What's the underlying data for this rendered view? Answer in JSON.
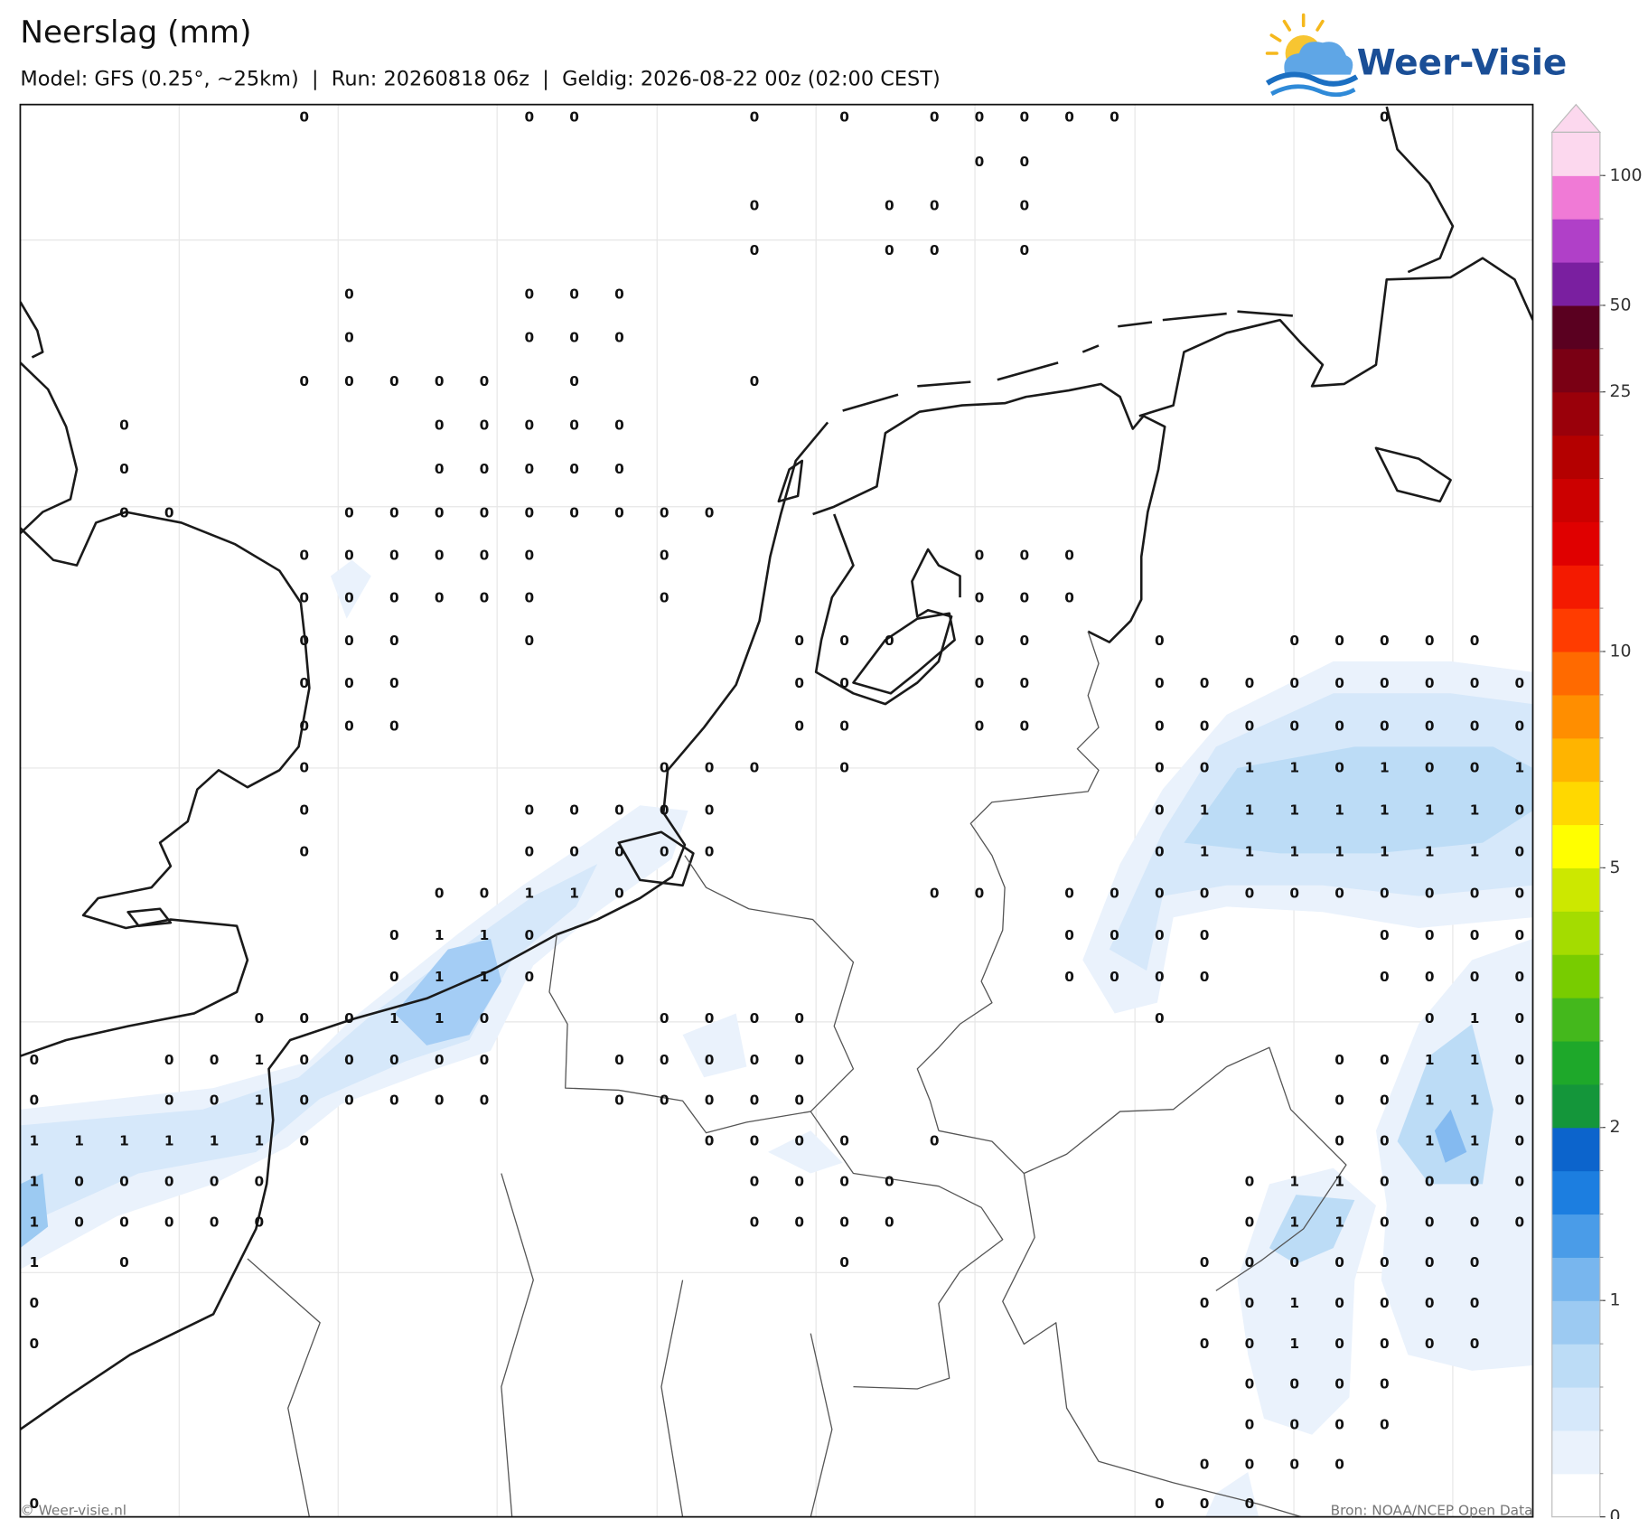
{
  "header": {
    "title": "Neerslag (mm)",
    "subtitle": "Model: GFS (0.25°, ~25km)  |  Run: 20260818 06z  |  Geldig: 2026-08-22 00z (02:00 CEST)",
    "logo": "Weer-Visie"
  },
  "map": {
    "grid": [
      [
        null,
        null,
        null,
        null,
        null,
        null,
        0,
        null,
        null,
        null,
        null,
        0,
        0,
        null,
        null,
        null,
        0,
        null,
        0,
        null,
        0,
        0,
        0,
        0,
        0,
        null,
        null,
        null,
        null,
        null,
        0,
        null,
        null,
        null
      ],
      [
        null,
        null,
        null,
        null,
        null,
        null,
        null,
        null,
        null,
        null,
        null,
        null,
        null,
        null,
        null,
        null,
        null,
        null,
        null,
        null,
        null,
        0,
        0,
        null,
        null,
        null,
        null,
        null,
        null,
        null,
        null,
        null,
        null,
        null
      ],
      [
        null,
        null,
        null,
        null,
        null,
        null,
        null,
        null,
        null,
        null,
        null,
        null,
        null,
        null,
        null,
        null,
        0,
        null,
        null,
        0,
        0,
        null,
        0,
        null,
        null,
        null,
        null,
        null,
        null,
        null,
        null,
        null,
        null,
        null
      ],
      [
        null,
        null,
        null,
        null,
        null,
        null,
        null,
        null,
        null,
        null,
        null,
        null,
        null,
        null,
        null,
        null,
        0,
        null,
        null,
        0,
        0,
        null,
        0,
        null,
        null,
        null,
        null,
        null,
        null,
        null,
        null,
        null,
        null,
        null
      ],
      [
        null,
        null,
        null,
        null,
        null,
        null,
        null,
        0,
        null,
        null,
        null,
        0,
        0,
        0,
        null,
        null,
        null,
        null,
        null,
        null,
        null,
        null,
        null,
        null,
        null,
        null,
        null,
        null,
        null,
        null,
        null,
        null,
        null,
        null
      ],
      [
        null,
        null,
        null,
        null,
        null,
        null,
        null,
        0,
        null,
        null,
        null,
        0,
        0,
        0,
        null,
        null,
        null,
        null,
        null,
        null,
        null,
        null,
        null,
        null,
        null,
        null,
        null,
        null,
        null,
        null,
        null,
        null,
        null,
        null
      ],
      [
        null,
        null,
        null,
        null,
        null,
        null,
        0,
        0,
        0,
        0,
        0,
        null,
        0,
        null,
        null,
        null,
        0,
        null,
        null,
        null,
        null,
        null,
        null,
        null,
        null,
        null,
        null,
        null,
        null,
        null,
        null,
        null,
        null,
        null
      ],
      [
        null,
        null,
        0,
        null,
        null,
        null,
        null,
        null,
        null,
        0,
        0,
        0,
        0,
        0,
        null,
        null,
        null,
        null,
        null,
        null,
        null,
        null,
        null,
        null,
        null,
        null,
        null,
        null,
        null,
        null,
        null,
        null,
        null,
        null
      ],
      [
        null,
        null,
        0,
        null,
        null,
        null,
        null,
        null,
        null,
        0,
        0,
        0,
        0,
        0,
        null,
        null,
        null,
        null,
        null,
        null,
        null,
        null,
        null,
        null,
        null,
        null,
        null,
        null,
        null,
        null,
        null,
        null,
        null,
        null
      ],
      [
        null,
        null,
        0,
        0,
        null,
        null,
        null,
        0,
        0,
        0,
        0,
        0,
        0,
        0,
        0,
        0,
        null,
        null,
        null,
        null,
        null,
        null,
        null,
        null,
        null,
        null,
        null,
        null,
        null,
        null,
        null,
        null,
        null,
        null
      ],
      [
        null,
        null,
        null,
        null,
        null,
        null,
        0,
        0,
        0,
        0,
        0,
        0,
        null,
        null,
        0,
        null,
        null,
        null,
        null,
        null,
        null,
        0,
        0,
        0,
        null,
        null,
        null,
        null,
        null,
        null,
        null,
        null,
        null,
        null
      ],
      [
        null,
        null,
        null,
        null,
        null,
        null,
        0,
        0,
        0,
        0,
        0,
        0,
        null,
        null,
        0,
        null,
        null,
        null,
        null,
        null,
        null,
        0,
        0,
        0,
        null,
        null,
        null,
        null,
        null,
        null,
        null,
        null,
        null,
        null
      ],
      [
        null,
        null,
        null,
        null,
        null,
        null,
        0,
        0,
        0,
        null,
        null,
        0,
        null,
        null,
        null,
        null,
        null,
        0,
        0,
        0,
        null,
        0,
        0,
        null,
        null,
        0,
        null,
        null,
        0,
        0,
        0,
        0,
        0,
        null
      ],
      [
        null,
        null,
        null,
        null,
        null,
        null,
        0,
        0,
        0,
        null,
        null,
        null,
        null,
        null,
        null,
        null,
        null,
        0,
        0,
        null,
        null,
        0,
        0,
        null,
        null,
        0,
        0,
        0,
        0,
        0,
        0,
        0,
        0,
        0
      ],
      [
        null,
        null,
        null,
        null,
        null,
        null,
        0,
        0,
        0,
        null,
        null,
        null,
        null,
        null,
        null,
        null,
        null,
        0,
        0,
        null,
        null,
        0,
        0,
        null,
        null,
        0,
        0,
        0,
        0,
        0,
        0,
        0,
        0,
        0
      ],
      [
        null,
        null,
        null,
        null,
        null,
        null,
        0,
        null,
        null,
        null,
        null,
        null,
        null,
        null,
        0,
        0,
        0,
        null,
        0,
        null,
        null,
        null,
        null,
        null,
        null,
        0,
        0,
        1,
        1,
        0,
        1,
        0,
        0,
        1
      ],
      [
        null,
        null,
        null,
        null,
        null,
        null,
        0,
        null,
        null,
        null,
        null,
        0,
        0,
        0,
        0,
        0,
        null,
        null,
        null,
        null,
        null,
        null,
        null,
        null,
        null,
        0,
        1,
        1,
        1,
        1,
        1,
        1,
        1,
        0
      ],
      [
        null,
        null,
        null,
        null,
        null,
        null,
        0,
        null,
        null,
        null,
        null,
        0,
        0,
        0,
        0,
        0,
        null,
        null,
        null,
        null,
        null,
        null,
        null,
        null,
        null,
        0,
        1,
        1,
        1,
        1,
        1,
        1,
        1,
        0
      ],
      [
        null,
        null,
        null,
        null,
        null,
        null,
        null,
        null,
        null,
        0,
        0,
        1,
        1,
        0,
        null,
        null,
        null,
        null,
        null,
        null,
        0,
        0,
        null,
        0,
        0,
        0,
        0,
        0,
        0,
        0,
        0,
        0,
        0,
        0
      ],
      [
        null,
        null,
        null,
        null,
        null,
        null,
        null,
        null,
        0,
        1,
        1,
        0,
        null,
        null,
        null,
        null,
        null,
        null,
        null,
        null,
        null,
        null,
        null,
        0,
        0,
        0,
        0,
        null,
        null,
        null,
        0,
        0,
        0,
        0
      ],
      [
        null,
        null,
        null,
        null,
        null,
        null,
        null,
        null,
        0,
        1,
        1,
        0,
        null,
        null,
        null,
        null,
        null,
        null,
        null,
        null,
        null,
        null,
        null,
        0,
        0,
        0,
        0,
        null,
        null,
        null,
        0,
        0,
        0,
        0
      ],
      [
        null,
        null,
        null,
        null,
        null,
        0,
        0,
        0,
        1,
        1,
        0,
        null,
        null,
        null,
        0,
        0,
        0,
        0,
        null,
        null,
        null,
        null,
        null,
        null,
        null,
        0,
        null,
        null,
        null,
        null,
        null,
        0,
        1,
        0
      ],
      [
        0,
        null,
        null,
        0,
        0,
        1,
        0,
        0,
        0,
        0,
        0,
        null,
        null,
        0,
        0,
        0,
        0,
        0,
        null,
        null,
        null,
        null,
        null,
        null,
        null,
        null,
        null,
        null,
        null,
        0,
        0,
        1,
        1,
        0
      ],
      [
        0,
        null,
        null,
        0,
        0,
        1,
        0,
        0,
        0,
        0,
        0,
        null,
        null,
        0,
        0,
        0,
        0,
        0,
        null,
        null,
        null,
        null,
        null,
        null,
        null,
        null,
        null,
        null,
        null,
        0,
        0,
        1,
        1,
        0
      ],
      [
        1,
        1,
        1,
        1,
        1,
        1,
        0,
        null,
        null,
        null,
        null,
        null,
        null,
        null,
        null,
        0,
        0,
        0,
        0,
        null,
        0,
        null,
        null,
        null,
        null,
        null,
        null,
        null,
        null,
        0,
        0,
        1,
        1,
        0
      ],
      [
        1,
        0,
        0,
        0,
        0,
        0,
        null,
        null,
        null,
        null,
        null,
        null,
        null,
        null,
        null,
        null,
        0,
        0,
        0,
        0,
        null,
        null,
        null,
        null,
        null,
        null,
        null,
        0,
        1,
        1,
        0,
        0,
        0,
        0
      ],
      [
        1,
        0,
        0,
        0,
        0,
        0,
        null,
        null,
        null,
        null,
        null,
        null,
        null,
        null,
        null,
        null,
        0,
        0,
        0,
        0,
        null,
        null,
        null,
        null,
        null,
        null,
        null,
        0,
        1,
        1,
        0,
        0,
        0,
        0
      ],
      [
        1,
        null,
        0,
        null,
        null,
        null,
        null,
        null,
        null,
        null,
        null,
        null,
        null,
        null,
        null,
        null,
        null,
        null,
        0,
        null,
        null,
        null,
        null,
        null,
        null,
        null,
        0,
        0,
        0,
        0,
        0,
        0,
        0,
        null
      ],
      [
        0,
        null,
        null,
        null,
        null,
        null,
        null,
        null,
        null,
        null,
        null,
        null,
        null,
        null,
        null,
        null,
        null,
        null,
        null,
        null,
        null,
        null,
        null,
        null,
        null,
        null,
        0,
        0,
        1,
        0,
        0,
        0,
        0,
        null
      ],
      [
        0,
        null,
        null,
        null,
        null,
        null,
        null,
        null,
        null,
        null,
        null,
        null,
        null,
        null,
        null,
        null,
        null,
        null,
        null,
        null,
        null,
        null,
        null,
        null,
        null,
        null,
        0,
        0,
        1,
        0,
        0,
        0,
        0,
        null
      ],
      [
        null,
        null,
        null,
        null,
        null,
        null,
        null,
        null,
        null,
        null,
        null,
        null,
        null,
        null,
        null,
        null,
        null,
        null,
        null,
        null,
        null,
        null,
        null,
        null,
        null,
        null,
        null,
        0,
        0,
        0,
        0,
        null,
        null,
        null
      ],
      [
        null,
        null,
        null,
        null,
        null,
        null,
        null,
        null,
        null,
        null,
        null,
        null,
        null,
        null,
        null,
        null,
        null,
        null,
        null,
        null,
        null,
        null,
        null,
        null,
        null,
        null,
        null,
        0,
        0,
        0,
        0,
        null,
        null,
        null
      ],
      [
        null,
        null,
        null,
        null,
        null,
        null,
        null,
        null,
        null,
        null,
        null,
        null,
        null,
        null,
        null,
        null,
        null,
        null,
        null,
        null,
        null,
        null,
        null,
        null,
        null,
        null,
        0,
        0,
        0,
        0,
        null,
        null,
        null,
        null
      ],
      [
        0,
        null,
        null,
        null,
        null,
        null,
        null,
        null,
        null,
        null,
        null,
        null,
        null,
        null,
        null,
        null,
        null,
        null,
        null,
        null,
        null,
        null,
        null,
        null,
        null,
        0,
        0,
        0,
        null,
        null,
        null,
        null,
        null,
        null
      ]
    ],
    "colorbar": {
      "colors": [
        "#ffffff",
        "#eaf2fc",
        "#d6e8fa",
        "#bcdcf6",
        "#9ccaf2",
        "#78b6ee",
        "#4a9ce8",
        "#1c7ee0",
        "#0c64cc",
        "#14963a",
        "#1ea82a",
        "#44b81c",
        "#78cc00",
        "#a4dc00",
        "#cce800",
        "#ffff00",
        "#ffd800",
        "#ffb400",
        "#ff8e00",
        "#ff6a00",
        "#ff3c00",
        "#f41a00",
        "#e00000",
        "#cc0000",
        "#b40000",
        "#9a000a",
        "#7a0014",
        "#5a0020",
        "#7a1fa0",
        "#b040c8",
        "#f07ad6",
        "#fcd8ee"
      ],
      "levels": [
        0,
        0.1,
        0.2,
        0.3,
        0.5,
        1,
        1.25,
        1.5,
        1.75,
        2,
        2.5,
        3,
        3.5,
        4,
        4.5,
        5,
        6,
        7,
        8,
        9,
        10,
        12.5,
        15,
        17.5,
        20,
        22.5,
        25,
        35,
        50,
        70,
        85,
        100,
        150
      ],
      "ticks": [
        0,
        1,
        2,
        5,
        10,
        25,
        50,
        100
      ]
    }
  },
  "footer": {
    "credit": "© Weer-visie.nl",
    "source": "Bron: NOAA/NCEP Open Data"
  }
}
